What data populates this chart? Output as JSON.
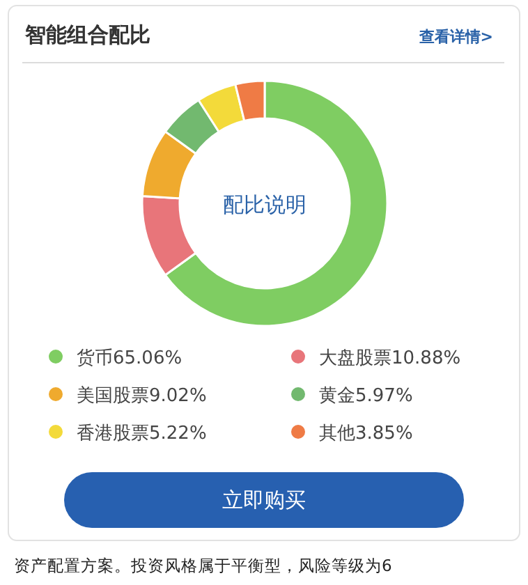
{
  "chart_data": {
    "type": "donut",
    "title": "智能组合配比",
    "categories": [
      "货币",
      "大盘股票",
      "美国股票",
      "黄金",
      "香港股票",
      "其他"
    ],
    "values": [
      65.06,
      10.88,
      9.02,
      5.97,
      5.22,
      3.85
    ],
    "colors": [
      "#7fcd62",
      "#e8757a",
      "#efaa2e",
      "#72b96f",
      "#f3da3a",
      "#ef7b45"
    ],
    "value_labels": [
      "65.06%",
      "10.88%",
      "9.02%",
      "5.97%",
      "5.22%",
      "3.85%"
    ],
    "legend": "bottom",
    "annotations": [
      "查看详情>",
      "配比说明",
      "立即购买",
      "资产配置方案。投资风格属于平衡型，风险等级为6"
    ]
  }
}
